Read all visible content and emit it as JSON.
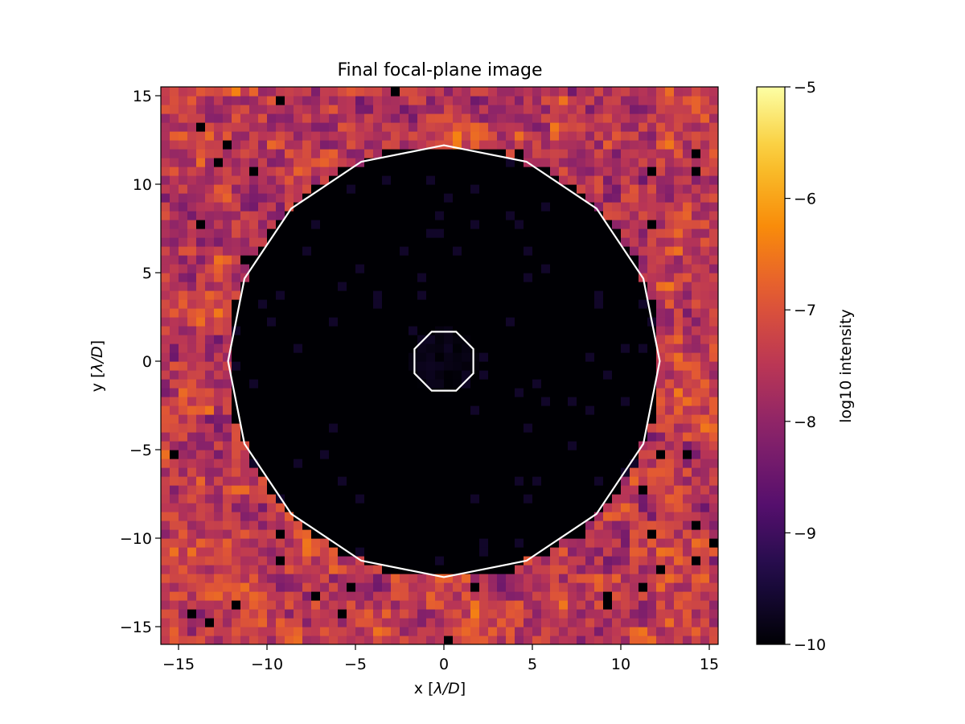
{
  "chart_data": {
    "type": "heatmap",
    "title": "Final focal-plane image",
    "xlabel_pre": "x [",
    "xlabel_sym": "λ/D",
    "xlabel_post": "]",
    "ylabel_pre": "y [",
    "ylabel_sym": "λ/D",
    "ylabel_post": "]",
    "xlim": [
      -16,
      15.5
    ],
    "ylim": [
      -16,
      15.5
    ],
    "xticks": [
      -15,
      -10,
      -5,
      0,
      5,
      10,
      15
    ],
    "xtick_labels": [
      "−15",
      "−10",
      "−5",
      "0",
      "5",
      "10",
      "15"
    ],
    "yticks": [
      -15,
      -10,
      -5,
      0,
      5,
      10,
      15
    ],
    "ytick_labels": [
      "−15",
      "−10",
      "−5",
      "0",
      "5",
      "10",
      "15"
    ],
    "grid": false,
    "pixel_size": 0.5,
    "colormap": "inferno",
    "colorbar": {
      "label": "log10 intensity",
      "vmin": -10,
      "vmax": -5,
      "ticks": [
        -10,
        -9,
        -8,
        -7,
        -6,
        -5
      ],
      "tick_labels": [
        "−10",
        "−9",
        "−8",
        "−7",
        "−6",
        "−5"
      ]
    },
    "dark_hole": {
      "inner_radius": 1.8,
      "outer_radius": 12.2,
      "level": -10
    },
    "background_level_range": [
      -8.6,
      -6.3
    ],
    "contour_color": "#ffffff"
  }
}
